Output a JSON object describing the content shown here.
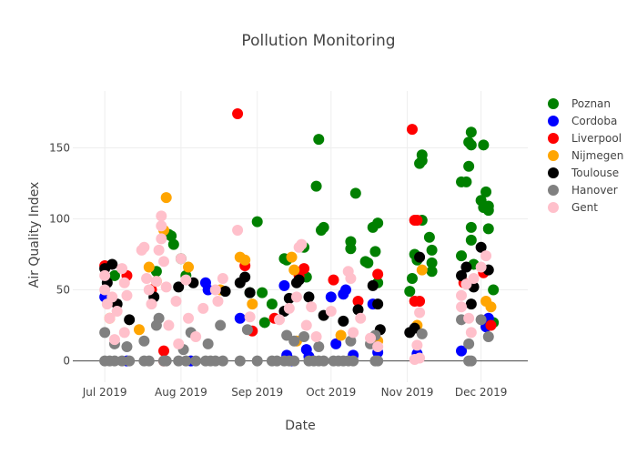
{
  "chart_data": {
    "type": "scatter",
    "title": "Pollution Monitoring",
    "xlabel": "Date",
    "ylabel": "Air Quality Index",
    "xlim": [
      "2019-06-18",
      "2019-12-20"
    ],
    "ylim": [
      -15,
      190
    ],
    "grid": true,
    "legend_position": "right",
    "x_ticks": [
      {
        "date": "2019-07-01",
        "label": "Jul 2019"
      },
      {
        "date": "2019-08-01",
        "label": "Aug 2019"
      },
      {
        "date": "2019-09-01",
        "label": "Sep 2019"
      },
      {
        "date": "2019-10-01",
        "label": "Oct 2019"
      },
      {
        "date": "2019-11-01",
        "label": "Nov 2019"
      },
      {
        "date": "2019-12-01",
        "label": "Dec 2019"
      }
    ],
    "y_ticks": [
      0,
      50,
      100,
      150
    ],
    "series": [
      {
        "name": "Poznan",
        "color": "#008000",
        "points": [
          [
            "2019-07-28",
            88
          ],
          [
            "2019-07-27",
            89
          ],
          [
            "2019-07-29",
            82
          ],
          [
            "2019-08-01",
            72
          ],
          [
            "2019-09-01",
            98
          ],
          [
            "2019-09-03",
            48
          ],
          [
            "2019-09-12",
            72
          ],
          [
            "2019-09-13",
            71
          ],
          [
            "2019-09-20",
            80
          ],
          [
            "2019-09-21",
            59
          ],
          [
            "2019-09-25",
            123
          ],
          [
            "2019-09-26",
            156
          ],
          [
            "2019-09-27",
            92
          ],
          [
            "2019-09-28",
            94
          ],
          [
            "2019-10-09",
            84
          ],
          [
            "2019-10-09",
            79
          ],
          [
            "2019-10-11",
            118
          ],
          [
            "2019-10-15",
            70
          ],
          [
            "2019-10-16",
            69
          ],
          [
            "2019-10-18",
            94
          ],
          [
            "2019-10-19",
            77
          ],
          [
            "2019-10-20",
            97
          ],
          [
            "2019-10-20",
            55
          ],
          [
            "2019-11-02",
            49
          ],
          [
            "2019-11-03",
            58
          ],
          [
            "2019-11-04",
            75
          ],
          [
            "2019-11-05",
            71
          ],
          [
            "2019-11-06",
            139
          ],
          [
            "2019-11-07",
            141
          ],
          [
            "2019-11-07",
            145
          ],
          [
            "2019-11-07",
            99
          ],
          [
            "2019-11-10",
            87
          ],
          [
            "2019-11-11",
            78
          ],
          [
            "2019-11-11",
            69
          ],
          [
            "2019-11-11",
            63
          ],
          [
            "2019-11-23",
            126
          ],
          [
            "2019-11-23",
            74
          ],
          [
            "2019-11-25",
            126
          ],
          [
            "2019-11-26",
            137
          ],
          [
            "2019-11-26",
            154
          ],
          [
            "2019-11-27",
            161
          ],
          [
            "2019-11-27",
            152
          ],
          [
            "2019-11-27",
            85
          ],
          [
            "2019-11-27",
            94
          ],
          [
            "2019-11-28",
            68
          ],
          [
            "2019-12-01",
            113
          ],
          [
            "2019-12-02",
            108
          ],
          [
            "2019-12-02",
            152
          ],
          [
            "2019-12-03",
            119
          ],
          [
            "2019-12-04",
            109
          ],
          [
            "2019-12-04",
            106
          ],
          [
            "2019-12-04",
            93
          ],
          [
            "2019-12-06",
            50
          ],
          [
            "2019-12-06",
            27
          ],
          [
            "2019-09-04",
            27
          ],
          [
            "2019-09-07",
            40
          ],
          [
            "2019-08-29",
            48
          ],
          [
            "2019-07-05",
            60
          ],
          [
            "2019-07-22",
            63
          ],
          [
            "2019-08-03",
            60
          ]
        ]
      },
      {
        "name": "Cordoba",
        "color": "#0000ff",
        "points": [
          [
            "2019-07-01",
            45
          ],
          [
            "2019-08-11",
            55
          ],
          [
            "2019-08-12",
            50
          ],
          [
            "2019-08-25",
            30
          ],
          [
            "2019-09-12",
            53
          ],
          [
            "2019-09-13",
            4
          ],
          [
            "2019-09-21",
            8
          ],
          [
            "2019-09-22",
            3
          ],
          [
            "2019-10-01",
            45
          ],
          [
            "2019-10-03",
            12
          ],
          [
            "2019-10-06",
            47
          ],
          [
            "2019-10-07",
            50
          ],
          [
            "2019-10-10",
            4
          ],
          [
            "2019-10-18",
            40
          ],
          [
            "2019-10-20",
            6
          ],
          [
            "2019-11-05",
            5
          ],
          [
            "2019-11-23",
            7
          ],
          [
            "2019-12-04",
            30
          ],
          [
            "2019-12-03",
            24
          ],
          [
            "2019-07-10",
            0
          ],
          [
            "2019-08-05",
            0
          ],
          [
            "2019-09-15",
            0
          ]
        ]
      },
      {
        "name": "Liverpool",
        "color": "#ff0000",
        "points": [
          [
            "2019-08-24",
            174
          ],
          [
            "2019-11-03",
            163
          ],
          [
            "2019-11-04",
            99
          ],
          [
            "2019-11-05",
            99
          ],
          [
            "2019-11-04",
            42
          ],
          [
            "2019-11-06",
            42
          ],
          [
            "2019-07-01",
            67
          ],
          [
            "2019-07-10",
            60
          ],
          [
            "2019-07-25",
            0
          ],
          [
            "2019-07-25",
            7
          ],
          [
            "2019-08-27",
            67
          ],
          [
            "2019-09-18",
            60
          ],
          [
            "2019-09-20",
            65
          ],
          [
            "2019-10-02",
            57
          ],
          [
            "2019-10-12",
            42
          ],
          [
            "2019-10-20",
            61
          ],
          [
            "2019-12-02",
            62
          ],
          [
            "2019-12-05",
            25
          ],
          [
            "2019-11-24",
            55
          ],
          [
            "2019-08-30",
            21
          ],
          [
            "2019-07-20",
            50
          ],
          [
            "2019-09-08",
            30
          ]
        ]
      },
      {
        "name": "Nijmegen",
        "color": "#ffa500",
        "points": [
          [
            "2019-07-26",
            115
          ],
          [
            "2019-07-25",
            92
          ],
          [
            "2019-08-25",
            73
          ],
          [
            "2019-08-27",
            71
          ],
          [
            "2019-09-15",
            73
          ],
          [
            "2019-09-16",
            64
          ],
          [
            "2019-08-04",
            66
          ],
          [
            "2019-08-30",
            40
          ],
          [
            "2019-11-07",
            64
          ],
          [
            "2019-11-05",
            25
          ],
          [
            "2019-12-03",
            42
          ],
          [
            "2019-12-05",
            38
          ],
          [
            "2019-07-19",
            66
          ],
          [
            "2019-07-03",
            30
          ],
          [
            "2019-07-15",
            22
          ],
          [
            "2019-10-05",
            18
          ],
          [
            "2019-09-17",
            14
          ],
          [
            "2019-10-20",
            14
          ],
          [
            "2019-07-22",
            56
          ],
          [
            "2019-08-17",
            50
          ]
        ]
      },
      {
        "name": "Toulouse",
        "color": "#000000",
        "points": [
          [
            "2019-07-01",
            65
          ],
          [
            "2019-07-04",
            68
          ],
          [
            "2019-07-02",
            55
          ],
          [
            "2019-07-06",
            40
          ],
          [
            "2019-07-11",
            29
          ],
          [
            "2019-07-21",
            45
          ],
          [
            "2019-07-31",
            52
          ],
          [
            "2019-08-06",
            55
          ],
          [
            "2019-08-19",
            49
          ],
          [
            "2019-08-25",
            55
          ],
          [
            "2019-08-27",
            59
          ],
          [
            "2019-08-29",
            48
          ],
          [
            "2019-09-12",
            35
          ],
          [
            "2019-09-14",
            44
          ],
          [
            "2019-09-17",
            55
          ],
          [
            "2019-09-18",
            57
          ],
          [
            "2019-09-22",
            45
          ],
          [
            "2019-09-28",
            32
          ],
          [
            "2019-10-06",
            28
          ],
          [
            "2019-10-12",
            36
          ],
          [
            "2019-10-18",
            53
          ],
          [
            "2019-10-20",
            40
          ],
          [
            "2019-10-21",
            22
          ],
          [
            "2019-11-02",
            20
          ],
          [
            "2019-11-04",
            23
          ],
          [
            "2019-11-06",
            73
          ],
          [
            "2019-11-23",
            60
          ],
          [
            "2019-11-25",
            66
          ],
          [
            "2019-11-27",
            40
          ],
          [
            "2019-12-01",
            80
          ],
          [
            "2019-12-04",
            64
          ],
          [
            "2019-11-28",
            52
          ]
        ]
      },
      {
        "name": "Hanover",
        "color": "#808080",
        "points": [
          [
            "2019-07-01",
            20
          ],
          [
            "2019-07-05",
            12
          ],
          [
            "2019-07-10",
            10
          ],
          [
            "2019-07-17",
            14
          ],
          [
            "2019-07-22",
            25
          ],
          [
            "2019-07-23",
            30
          ],
          [
            "2019-08-02",
            8
          ],
          [
            "2019-08-05",
            20
          ],
          [
            "2019-08-12",
            12
          ],
          [
            "2019-08-17",
            25
          ],
          [
            "2019-08-28",
            22
          ],
          [
            "2019-09-13",
            18
          ],
          [
            "2019-09-16",
            14
          ],
          [
            "2019-09-20",
            17
          ],
          [
            "2019-09-26",
            10
          ],
          [
            "2019-10-09",
            14
          ],
          [
            "2019-10-17",
            12
          ],
          [
            "2019-10-19",
            18
          ],
          [
            "2019-11-07",
            19
          ],
          [
            "2019-11-23",
            29
          ],
          [
            "2019-11-26",
            12
          ],
          [
            "2019-12-01",
            29
          ],
          [
            "2019-12-04",
            17
          ],
          [
            "2019-07-01",
            0
          ],
          [
            "2019-07-03",
            0
          ],
          [
            "2019-07-05",
            0
          ],
          [
            "2019-07-08",
            0
          ],
          [
            "2019-07-11",
            0
          ],
          [
            "2019-07-17",
            0
          ],
          [
            "2019-07-19",
            0
          ],
          [
            "2019-07-25",
            0
          ],
          [
            "2019-07-26",
            0
          ],
          [
            "2019-07-31",
            0
          ],
          [
            "2019-08-03",
            0
          ],
          [
            "2019-08-07",
            0
          ],
          [
            "2019-08-11",
            0
          ],
          [
            "2019-08-13",
            0
          ],
          [
            "2019-08-15",
            0
          ],
          [
            "2019-08-18",
            0
          ],
          [
            "2019-08-25",
            0
          ],
          [
            "2019-09-01",
            0
          ],
          [
            "2019-09-07",
            0
          ],
          [
            "2019-09-09",
            0
          ],
          [
            "2019-09-12",
            0
          ],
          [
            "2019-09-14",
            0
          ],
          [
            "2019-09-16",
            0
          ],
          [
            "2019-09-22",
            0
          ],
          [
            "2019-09-24",
            0
          ],
          [
            "2019-09-26",
            0
          ],
          [
            "2019-09-28",
            0
          ],
          [
            "2019-10-02",
            0
          ],
          [
            "2019-10-04",
            0
          ],
          [
            "2019-10-06",
            0
          ],
          [
            "2019-10-08",
            0
          ],
          [
            "2019-10-10",
            0
          ],
          [
            "2019-10-19",
            0
          ],
          [
            "2019-10-20",
            0
          ],
          [
            "2019-11-26",
            0
          ],
          [
            "2019-11-27",
            0
          ]
        ]
      },
      {
        "name": "Gent",
        "color": "#ffc0cb",
        "points": [
          [
            "2019-07-01",
            60
          ],
          [
            "2019-07-01",
            50
          ],
          [
            "2019-07-02",
            40
          ],
          [
            "2019-07-03",
            30
          ],
          [
            "2019-07-04",
            45
          ],
          [
            "2019-07-05",
            15
          ],
          [
            "2019-07-06",
            35
          ],
          [
            "2019-07-08",
            65
          ],
          [
            "2019-07-09",
            55
          ],
          [
            "2019-07-10",
            46
          ],
          [
            "2019-07-09",
            20
          ],
          [
            "2019-07-16",
            78
          ],
          [
            "2019-07-17",
            80
          ],
          [
            "2019-07-18",
            58
          ],
          [
            "2019-07-19",
            50
          ],
          [
            "2019-07-20",
            40
          ],
          [
            "2019-07-22",
            56
          ],
          [
            "2019-07-23",
            78
          ],
          [
            "2019-07-24",
            95
          ],
          [
            "2019-07-24",
            102
          ],
          [
            "2019-07-24",
            86
          ],
          [
            "2019-07-25",
            70
          ],
          [
            "2019-07-26",
            52
          ],
          [
            "2019-07-27",
            25
          ],
          [
            "2019-07-30",
            42
          ],
          [
            "2019-07-31",
            12
          ],
          [
            "2019-08-01",
            72
          ],
          [
            "2019-08-03",
            57
          ],
          [
            "2019-08-04",
            30
          ],
          [
            "2019-08-07",
            17
          ],
          [
            "2019-08-10",
            37
          ],
          [
            "2019-08-15",
            50
          ],
          [
            "2019-08-16",
            42
          ],
          [
            "2019-08-18",
            58
          ],
          [
            "2019-08-24",
            92
          ],
          [
            "2019-08-29",
            31
          ],
          [
            "2019-09-10",
            29
          ],
          [
            "2019-09-14",
            37
          ],
          [
            "2019-09-17",
            45
          ],
          [
            "2019-09-18",
            80
          ],
          [
            "2019-09-19",
            82
          ],
          [
            "2019-09-21",
            25
          ],
          [
            "2019-09-23",
            38
          ],
          [
            "2019-09-25",
            17
          ],
          [
            "2019-10-01",
            35
          ],
          [
            "2019-10-08",
            63
          ],
          [
            "2019-10-09",
            58
          ],
          [
            "2019-10-10",
            20
          ],
          [
            "2019-10-13",
            30
          ],
          [
            "2019-10-17",
            16
          ],
          [
            "2019-10-20",
            10
          ],
          [
            "2019-11-04",
            1
          ],
          [
            "2019-11-05",
            11
          ],
          [
            "2019-11-06",
            34
          ],
          [
            "2019-11-06",
            2
          ],
          [
            "2019-11-23",
            46
          ],
          [
            "2019-11-23",
            38
          ],
          [
            "2019-11-25",
            54
          ],
          [
            "2019-11-26",
            30
          ],
          [
            "2019-11-27",
            20
          ],
          [
            "2019-11-28",
            58
          ],
          [
            "2019-12-01",
            66
          ],
          [
            "2019-12-03",
            74
          ]
        ]
      }
    ]
  }
}
